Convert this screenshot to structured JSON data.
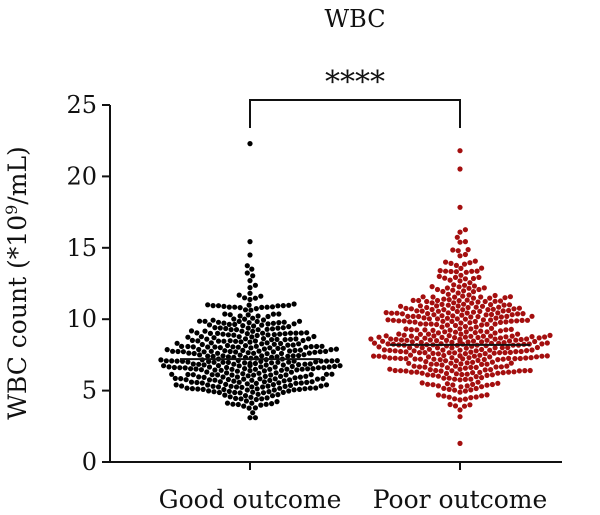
{
  "chart_data": {
    "type": "scatter",
    "subtype": "beeswarm",
    "title": "WBC",
    "ylabel": "WBC count (*10⁹/mL)",
    "ylabel_parts": {
      "before": "WBC count (*10",
      "superscript": "9",
      "after": "/mL)"
    },
    "ylim": [
      0,
      25
    ],
    "yticks": [
      0,
      5,
      10,
      15,
      20,
      25
    ],
    "categories": [
      "Good outcome",
      "Poor outcome"
    ],
    "series": [
      {
        "name": "Good outcome",
        "color": "#000000",
        "median": 7.2,
        "min": 3.1,
        "max": 22.3,
        "n_approx": 400
      },
      {
        "name": "Poor outcome",
        "color": "#a40f0f",
        "median": 8.2,
        "min": 1.3,
        "max": 21.8,
        "n_approx": 450
      }
    ],
    "significance": {
      "between": [
        "Good outcome",
        "Poor outcome"
      ],
      "label": "****"
    },
    "grid": false,
    "legend": "none"
  }
}
